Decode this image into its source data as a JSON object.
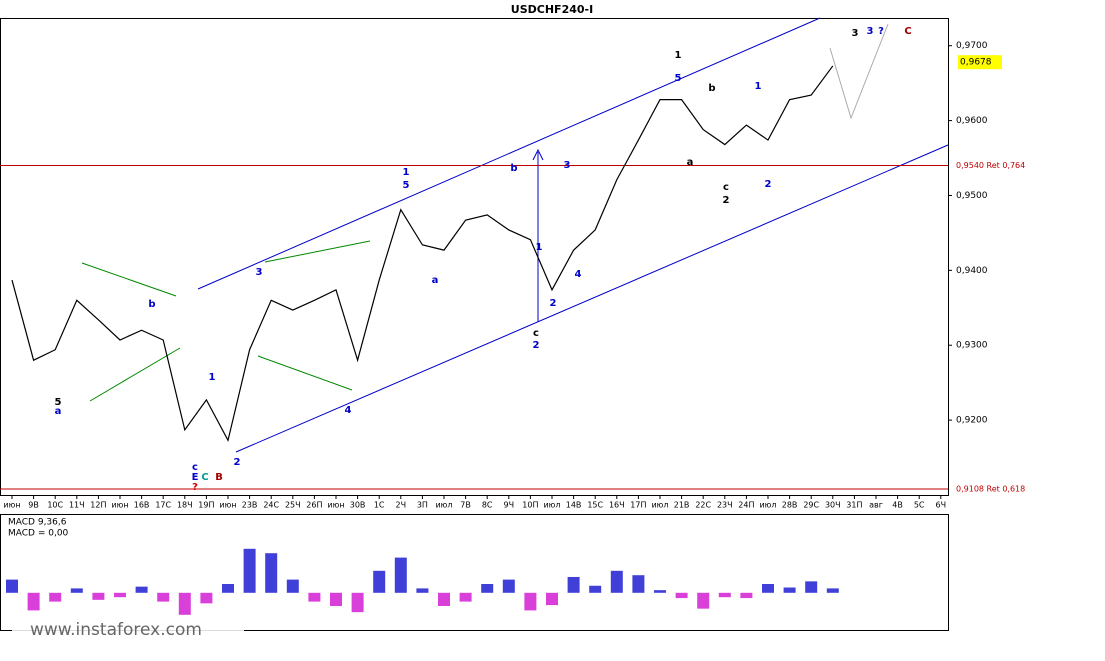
{
  "chart_data": {
    "type": "line",
    "title": "USDCHF240-I",
    "x": [
      "июн",
      "9В",
      "10С",
      "11Ч",
      "12П",
      "июн",
      "16В",
      "17С",
      "18Ч",
      "19П",
      "июн",
      "23В",
      "24С",
      "25Ч",
      "26П",
      "июн",
      "30В",
      "1С",
      "2Ч",
      "3П",
      "июл",
      "7В",
      "8С",
      "9Ч",
      "10П",
      "июл",
      "14В",
      "15С",
      "16Ч",
      "17П",
      "июл",
      "21В",
      "22С",
      "23Ч",
      "24П",
      "июл",
      "28В",
      "29С",
      "30Ч",
      "31П",
      "авг",
      "4В",
      "5С",
      "6Ч"
    ],
    "series": [
      {
        "name": "USDCHF240-I",
        "color": "#000000",
        "values": [
          0.9387,
          0.928,
          0.9294,
          0.936,
          0.9334,
          0.9307,
          0.932,
          0.9307,
          0.9187,
          0.9227,
          0.9173,
          0.9294,
          0.936,
          0.9347,
          0.936,
          0.9374,
          0.928,
          0.9387,
          0.9481,
          0.9434,
          0.9427,
          0.9467,
          0.9474,
          0.9454,
          0.9441,
          0.9374,
          0.9427,
          0.9454,
          0.9521,
          0.9574,
          0.9628,
          0.9628,
          0.9588,
          0.9568,
          0.9594,
          0.9574,
          0.9628,
          0.9634,
          0.9673,
          null,
          null,
          null,
          null,
          null
        ]
      }
    ],
    "ylim": [
      0.91,
      0.9737
    ],
    "yticks": [
      {
        "value": 0.92,
        "label": "0,9200"
      },
      {
        "value": 0.93,
        "label": "0,9300"
      },
      {
        "value": 0.94,
        "label": "0,9400"
      },
      {
        "value": 0.95,
        "label": "0,9500"
      },
      {
        "value": 0.96,
        "label": "0,9600"
      },
      {
        "value": 0.97,
        "label": "0,9700"
      }
    ],
    "last_price": {
      "value": 0.9678,
      "label": "0,9678"
    },
    "levels": [
      {
        "value": 0.954,
        "label": "0,9540 Ret 0,764",
        "color": "#c00000"
      },
      {
        "value": 0.9108,
        "label": "0,9108 Ret 0,618",
        "color": "#c00000"
      }
    ],
    "annotations": [
      "1",
      "5",
      "b",
      "a",
      "c",
      "2",
      "1",
      "2",
      "3",
      "3",
      "?",
      "C",
      "1",
      "5",
      "a",
      "b",
      "3",
      "c",
      "2",
      "1",
      "2",
      "4",
      "3",
      "4",
      "1",
      "2",
      "c",
      "E",
      "C",
      "B",
      "?",
      "b",
      "a",
      "5"
    ],
    "macd": {
      "title": "MACD 9,36,6",
      "value_text": "MACD = 0,00",
      "ylim": [
        -0.004,
        0.006
      ],
      "values": [
        0.0015,
        -0.002,
        -0.001,
        0.0005,
        -0.0008,
        -0.0005,
        0.0007,
        -0.001,
        -0.0025,
        -0.0012,
        0.001,
        0.005,
        0.0045,
        0.0015,
        -0.001,
        -0.0015,
        -0.0022,
        0.0025,
        0.004,
        0.0005,
        -0.0015,
        -0.001,
        0.001,
        0.0015,
        -0.002,
        -0.0014,
        0.0018,
        0.0008,
        0.0025,
        0.002,
        0.0003,
        -0.0006,
        -0.0018,
        -0.0005,
        -0.0006,
        0.001,
        0.0006,
        0.0013,
        0.0005,
        null,
        null,
        null,
        null,
        null
      ],
      "pos_color": "#0000cc",
      "neg_color": "#cc00cc"
    },
    "watermark": "www.instaforex.com"
  }
}
